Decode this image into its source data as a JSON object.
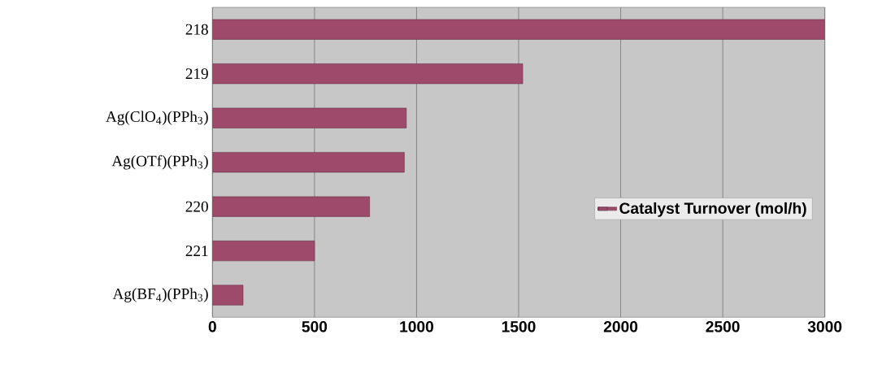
{
  "chart_data": {
    "type": "bar",
    "orientation": "horizontal",
    "categories": [
      "218",
      "219",
      "Ag(ClO$_{4}$)(PPh$_{3}$)",
      "Ag(OTf)(PPh$_{3}$)",
      "220",
      "221",
      "Ag(BF$_{4}$)(PPh$_{3}$)"
    ],
    "series": [
      {
        "name": "Catalyst Turnover (mol/h)",
        "color": "#9e4a6a",
        "values": [
          3000,
          1520,
          950,
          940,
          770,
          500,
          150
        ]
      }
    ],
    "xlim": [
      0,
      3000
    ],
    "xticks": [
      0,
      500,
      1000,
      1500,
      2000,
      2500,
      3000
    ],
    "grid": "x",
    "legend": "right"
  }
}
